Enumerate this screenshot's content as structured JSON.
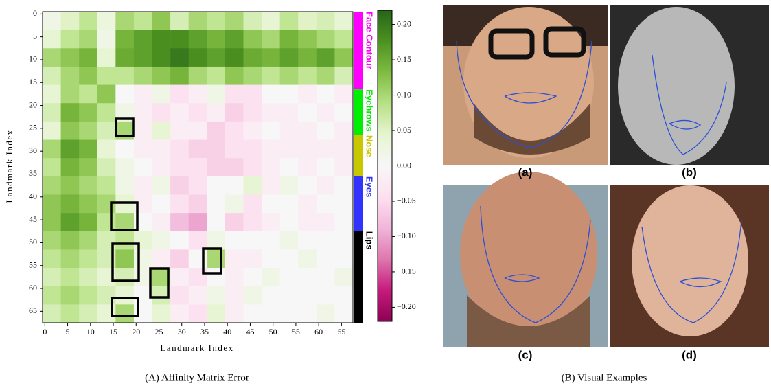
{
  "chart_data": {
    "type": "heatmap",
    "xlabel": "Landmark Index",
    "ylabel": "Landmark Index",
    "x_edges": [
      -0.5,
      3.5,
      7.5,
      11.5,
      15.5,
      19.5,
      23.5,
      27.5,
      31.5,
      35.5,
      39.5,
      43.5,
      47.5,
      51.5,
      55.5,
      59.5,
      63.5,
      67.5
    ],
    "y_edges": [
      -0.5,
      3.5,
      7.5,
      11.5,
      15.5,
      19.5,
      23.5,
      27.5,
      31.5,
      35.5,
      39.5,
      43.5,
      47.5,
      51.5,
      55.5,
      59.5,
      63.5,
      67.5
    ],
    "xlim": [
      -0.5,
      67.5
    ],
    "ylim": [
      67.5,
      -0.5
    ],
    "xticks": [
      0,
      5,
      10,
      15,
      20,
      25,
      30,
      35,
      40,
      45,
      50,
      55,
      60,
      65
    ],
    "yticks": [
      0,
      5,
      10,
      15,
      20,
      25,
      30,
      35,
      40,
      45,
      50,
      55,
      60,
      65
    ],
    "z": [
      [
        0.02,
        0.05,
        0.08,
        0.03,
        0.1,
        0.08,
        0.12,
        0.06,
        0.1,
        0.08,
        0.1,
        0.06,
        0.04,
        0.08,
        0.05,
        0.06,
        0.04
      ],
      [
        0.04,
        0.08,
        0.1,
        0.02,
        0.14,
        0.16,
        0.18,
        0.18,
        0.16,
        0.14,
        0.16,
        0.12,
        0.1,
        0.14,
        0.12,
        0.1,
        0.08
      ],
      [
        0.1,
        0.12,
        0.14,
        0.04,
        0.15,
        0.16,
        0.18,
        0.2,
        0.18,
        0.16,
        0.18,
        0.15,
        0.14,
        0.16,
        0.14,
        0.16,
        0.12
      ],
      [
        0.06,
        0.1,
        0.12,
        0.08,
        0.08,
        0.1,
        0.12,
        0.14,
        0.1,
        0.08,
        0.12,
        0.1,
        0.08,
        0.1,
        0.08,
        0.1,
        0.06
      ],
      [
        0.04,
        0.1,
        0.08,
        0.12,
        0.0,
        -0.02,
        0.02,
        -0.04,
        -0.02,
        0.02,
        -0.04,
        -0.04,
        0.0,
        0.0,
        -0.02,
        0.0,
        -0.02
      ],
      [
        0.06,
        0.14,
        0.12,
        0.08,
        0.02,
        -0.02,
        -0.04,
        -0.02,
        -0.04,
        -0.02,
        -0.06,
        -0.04,
        -0.02,
        -0.02,
        0.0,
        -0.02,
        0.0
      ],
      [
        0.04,
        0.12,
        0.1,
        0.06,
        0.1,
        -0.02,
        0.04,
        -0.02,
        -0.02,
        -0.06,
        -0.04,
        -0.02,
        0.0,
        -0.02,
        -0.02,
        0.0,
        -0.02
      ],
      [
        0.1,
        0.16,
        0.14,
        0.04,
        0.0,
        -0.02,
        -0.02,
        -0.04,
        -0.06,
        -0.06,
        -0.04,
        -0.04,
        -0.02,
        -0.02,
        -0.02,
        -0.02,
        -0.02
      ],
      [
        0.08,
        0.14,
        0.12,
        0.06,
        0.02,
        0.0,
        -0.02,
        -0.04,
        -0.04,
        -0.06,
        -0.06,
        -0.04,
        -0.02,
        0.0,
        -0.02,
        0.0,
        -0.02
      ],
      [
        0.1,
        0.12,
        0.1,
        0.08,
        0.02,
        -0.02,
        0.02,
        -0.06,
        -0.04,
        0.0,
        0.0,
        0.04,
        -0.02,
        0.02,
        0.0,
        -0.02,
        0.0
      ],
      [
        0.12,
        0.14,
        0.12,
        0.1,
        0.04,
        -0.02,
        0.0,
        -0.04,
        -0.06,
        0.0,
        0.02,
        -0.04,
        0.0,
        0.0,
        -0.02,
        0.0,
        0.0
      ],
      [
        0.12,
        0.16,
        0.14,
        0.08,
        0.1,
        0.0,
        -0.02,
        -0.08,
        -0.1,
        0.0,
        -0.06,
        -0.04,
        -0.02,
        0.0,
        -0.02,
        -0.02,
        0.0
      ],
      [
        0.1,
        0.12,
        0.1,
        0.06,
        0.08,
        0.04,
        0.02,
        0.0,
        -0.04,
        0.02,
        0.0,
        0.0,
        0.0,
        0.02,
        0.0,
        0.0,
        0.0
      ],
      [
        0.08,
        0.1,
        0.08,
        0.06,
        0.12,
        0.02,
        -0.02,
        -0.06,
        0.0,
        0.1,
        -0.02,
        -0.02,
        0.0,
        0.0,
        0.02,
        0.0,
        0.0
      ],
      [
        0.06,
        0.08,
        0.06,
        0.04,
        0.06,
        0.02,
        0.1,
        -0.02,
        -0.04,
        0.0,
        -0.02,
        0.0,
        0.02,
        0.0,
        0.0,
        0.0,
        0.02
      ],
      [
        0.08,
        0.1,
        0.08,
        0.06,
        0.04,
        0.0,
        0.06,
        -0.04,
        -0.02,
        0.02,
        -0.02,
        0.02,
        0.0,
        0.0,
        0.0,
        0.0,
        0.0
      ],
      [
        0.06,
        0.08,
        0.06,
        0.04,
        0.1,
        0.0,
        0.04,
        -0.02,
        -0.04,
        0.04,
        -0.02,
        0.0,
        0.0,
        0.0,
        0.0,
        0.02,
        0.0
      ]
    ],
    "clim": [
      -0.22,
      0.22
    ],
    "colormap": [
      "#8e0152",
      "#c51b7d",
      "#de77ae",
      "#f1b6da",
      "#fde0ef",
      "#f7f7f7",
      "#e6f5d0",
      "#b8e186",
      "#7fbc41",
      "#4d9221",
      "#276419"
    ],
    "cticks": [
      {
        "value": 0.2,
        "label": "0.20"
      },
      {
        "value": 0.15,
        "label": "0.15"
      },
      {
        "value": 0.1,
        "label": "0.10"
      },
      {
        "value": 0.05,
        "label": "0.05"
      },
      {
        "value": 0,
        "label": "0.00"
      },
      {
        "value": -0.05,
        "label": "−0.05"
      },
      {
        "value": -0.1,
        "label": "−0.10"
      },
      {
        "value": -0.15,
        "label": "−0.15"
      },
      {
        "value": -0.2,
        "label": "−0.20"
      }
    ],
    "groups": [
      {
        "name": "Face Contour",
        "color": "#ff00ff",
        "range": [
          -0.5,
          16.5
        ]
      },
      {
        "name": "Eyebrows",
        "color": "#00ee00",
        "range": [
          16.5,
          26.5
        ]
      },
      {
        "name": "Nose",
        "color": "#c8c800",
        "range": [
          26.5,
          35.5
        ]
      },
      {
        "name": "Eyes",
        "color": "#3333ff",
        "range": [
          35.5,
          47.5
        ]
      },
      {
        "name": "Lips",
        "color": "#000000",
        "range": [
          47.5,
          67.5
        ]
      }
    ]
  },
  "panels": [
    {
      "label": "(a)"
    },
    {
      "label": "(b)"
    },
    {
      "label": "(c)"
    },
    {
      "label": "(d)"
    }
  ],
  "captions": {
    "left": "(A) Affinity Matrix Error",
    "right": "(B) Visual Examples"
  }
}
